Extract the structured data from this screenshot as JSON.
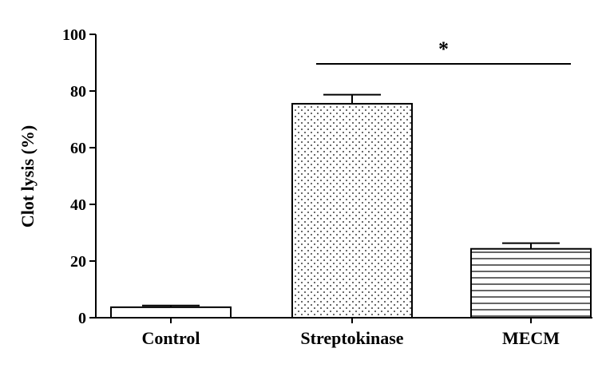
{
  "chart_data": {
    "type": "bar",
    "title": "",
    "xlabel": "",
    "ylabel": "Clot lysis (%)",
    "ylim": [
      0,
      100
    ],
    "yticks": [
      0,
      20,
      40,
      60,
      80,
      100
    ],
    "categories": [
      "Control",
      "Streptokinase",
      "MECM"
    ],
    "values": [
      3.7,
      75.5,
      24.3
    ],
    "errors": [
      0.6,
      3.2,
      2.0
    ],
    "patterns": [
      "none",
      "dots",
      "horizontal-lines"
    ],
    "significance": {
      "from": "Streptokinase",
      "to": "MECM",
      "label": "*"
    },
    "grid": false,
    "colors": {
      "axis": "#000000",
      "bar_fill": "#ffffff",
      "bar_stroke": "#000000"
    }
  }
}
